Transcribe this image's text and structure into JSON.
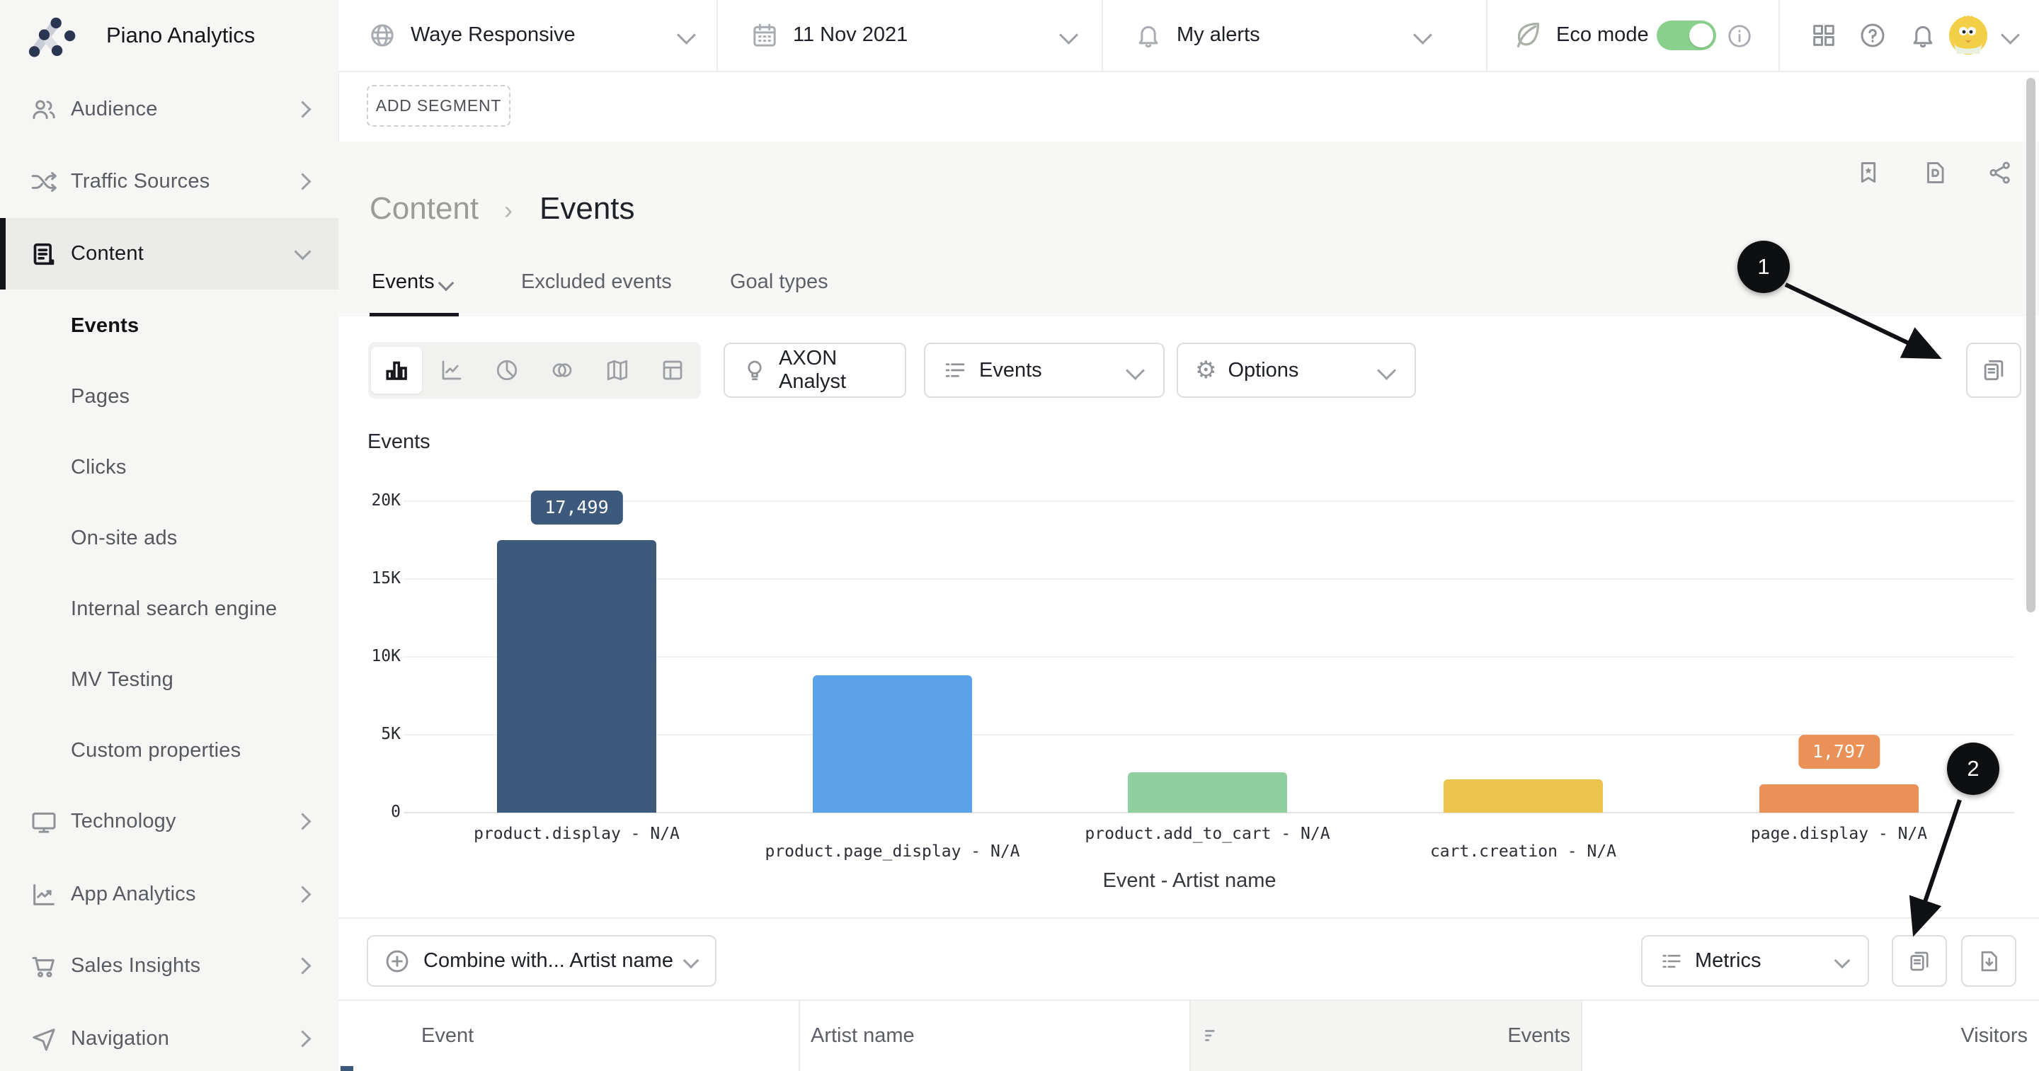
{
  "app": {
    "name": "Piano Analytics"
  },
  "topbar": {
    "site": {
      "label": "Waye Responsive"
    },
    "date": {
      "label": "11 Nov 2021"
    },
    "alerts": {
      "label": "My alerts"
    },
    "eco": {
      "label": "Eco mode",
      "enabled": true,
      "toggle_color": "#8ad08d"
    }
  },
  "segment": {
    "add_label": "ADD SEGMENT"
  },
  "breadcrumb": {
    "section": "Content",
    "separator": "›",
    "page": "Events"
  },
  "tabs": [
    {
      "label": "Events",
      "active": true
    },
    {
      "label": "Excluded events",
      "active": false
    },
    {
      "label": "Goal types",
      "active": false
    }
  ],
  "controls": {
    "axon_label": "AXON Analyst",
    "dimension_label": "Events",
    "options_label": "Options"
  },
  "combine": {
    "label": "Combine with... Artist name"
  },
  "metrics": {
    "label": "Metrics"
  },
  "table": {
    "columns": [
      {
        "label": "Event",
        "align": "left"
      },
      {
        "label": "Artist name",
        "align": "left"
      },
      {
        "label": "Events",
        "align": "right",
        "shaded": true
      },
      {
        "label": "Visitors",
        "align": "right"
      }
    ]
  },
  "sidebar": {
    "items": [
      {
        "label": "Audience"
      },
      {
        "label": "Traffic Sources"
      },
      {
        "label": "Content",
        "active": true
      },
      {
        "label": "Events",
        "sub": true,
        "current": true
      },
      {
        "label": "Pages",
        "sub": true
      },
      {
        "label": "Clicks",
        "sub": true
      },
      {
        "label": "On-site ads",
        "sub": true
      },
      {
        "label": "Internal search engine",
        "sub": true
      },
      {
        "label": "MV Testing",
        "sub": true
      },
      {
        "label": "Custom properties",
        "sub": true
      },
      {
        "label": "Technology"
      },
      {
        "label": "App Analytics"
      },
      {
        "label": "Sales Insights"
      },
      {
        "label": "Navigation"
      }
    ]
  },
  "annotations": {
    "step1": "1",
    "step2": "2"
  },
  "chart_data": {
    "type": "bar",
    "title": "Events",
    "xlabel": "Event - Artist name",
    "ylabel": "",
    "categories": [
      "product.display - N/A",
      "product.page_display - N/A",
      "product.add_to_cart - N/A",
      "cart.creation - N/A",
      "page.display - N/A"
    ],
    "values": [
      17499,
      8800,
      2600,
      2150,
      1797
    ],
    "bar_colors": [
      "#3d5a7d",
      "#5ba3e8",
      "#90cfa0",
      "#ecc34d",
      "#ea9157"
    ],
    "data_labels": [
      {
        "index": 0,
        "text": "17,499"
      },
      {
        "index": 4,
        "text": "1,797"
      }
    ],
    "yticks": [
      {
        "label": "20K",
        "value": 20000
      },
      {
        "label": "15K",
        "value": 15000
      },
      {
        "label": "10K",
        "value": 10000
      },
      {
        "label": "5K",
        "value": 5000
      },
      {
        "label": "0",
        "value": 0
      }
    ],
    "ylim": [
      0,
      22000
    ],
    "grid": true,
    "legend": false
  }
}
